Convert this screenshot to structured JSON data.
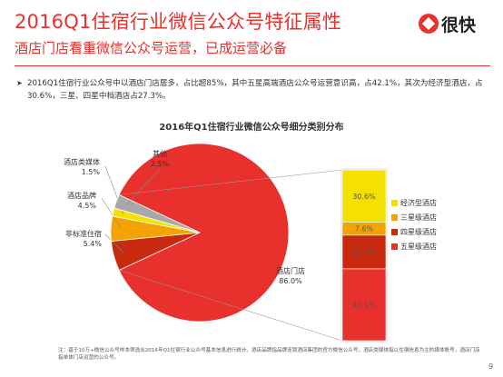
{
  "header": {
    "title": "2016Q1住宿行业微信公众号特征属性",
    "subtitle": "酒店门店看重微信公众号运营，已成运营必备",
    "logo_text": "很快"
  },
  "bullet": {
    "text": "2016Q1住宿行业公众号中以酒店门店居多，占比超85%，其中五星高端酒店公众号运营意识高，占42.1%，其次为经济型酒店，占30.6%，三星、四星中档酒店占27.3%。"
  },
  "footnote": "注：基于10万+微信公众号样本筛选出2016年Q1住宿行业公众号基本信息进行统计。酒店品牌指品牌连锁酒店集团的官方微信公众号，酒店类媒体指以住宿信息为主的媒体账号，酒店门店指单体门店运营的公众号。",
  "page_number": "9",
  "chart_data": {
    "type": "pie",
    "title": "2016年Q1住宿行业微信公众号细分类别分布",
    "slices": [
      {
        "name": "酒店门店",
        "value": 86.0,
        "label": "86.0%",
        "color": "#e8302c"
      },
      {
        "name": "非标准住宿",
        "value": 5.4,
        "label": "5.4%",
        "color": "#c8290f"
      },
      {
        "name": "酒店品牌",
        "value": 4.5,
        "label": "4.5%",
        "color": "#f5a300"
      },
      {
        "name": "酒店类媒体",
        "value": 1.5,
        "label": "1.5%",
        "color": "#f6e000"
      },
      {
        "name": "其他",
        "value": 2.5,
        "label": "2.5%",
        "color": "#a8a8a8"
      }
    ],
    "breakdown": {
      "of": "酒店门店",
      "type": "stacked-bar",
      "segments": [
        {
          "name": "五星级酒店",
          "value": 42.1,
          "label": "42.1%",
          "color": "#e8302c"
        },
        {
          "name": "四星级酒店",
          "value": 19.7,
          "label": "19.7%",
          "color": "#c8290f"
        },
        {
          "name": "三星级酒店",
          "value": 7.6,
          "label": "7.6%",
          "color": "#f5a300"
        },
        {
          "name": "经济型酒店",
          "value": 30.6,
          "label": "30.6%",
          "color": "#f6e000"
        }
      ],
      "legend_order": [
        "经济型酒店",
        "三星级酒店",
        "四星级酒店",
        "五星级酒店"
      ]
    }
  }
}
